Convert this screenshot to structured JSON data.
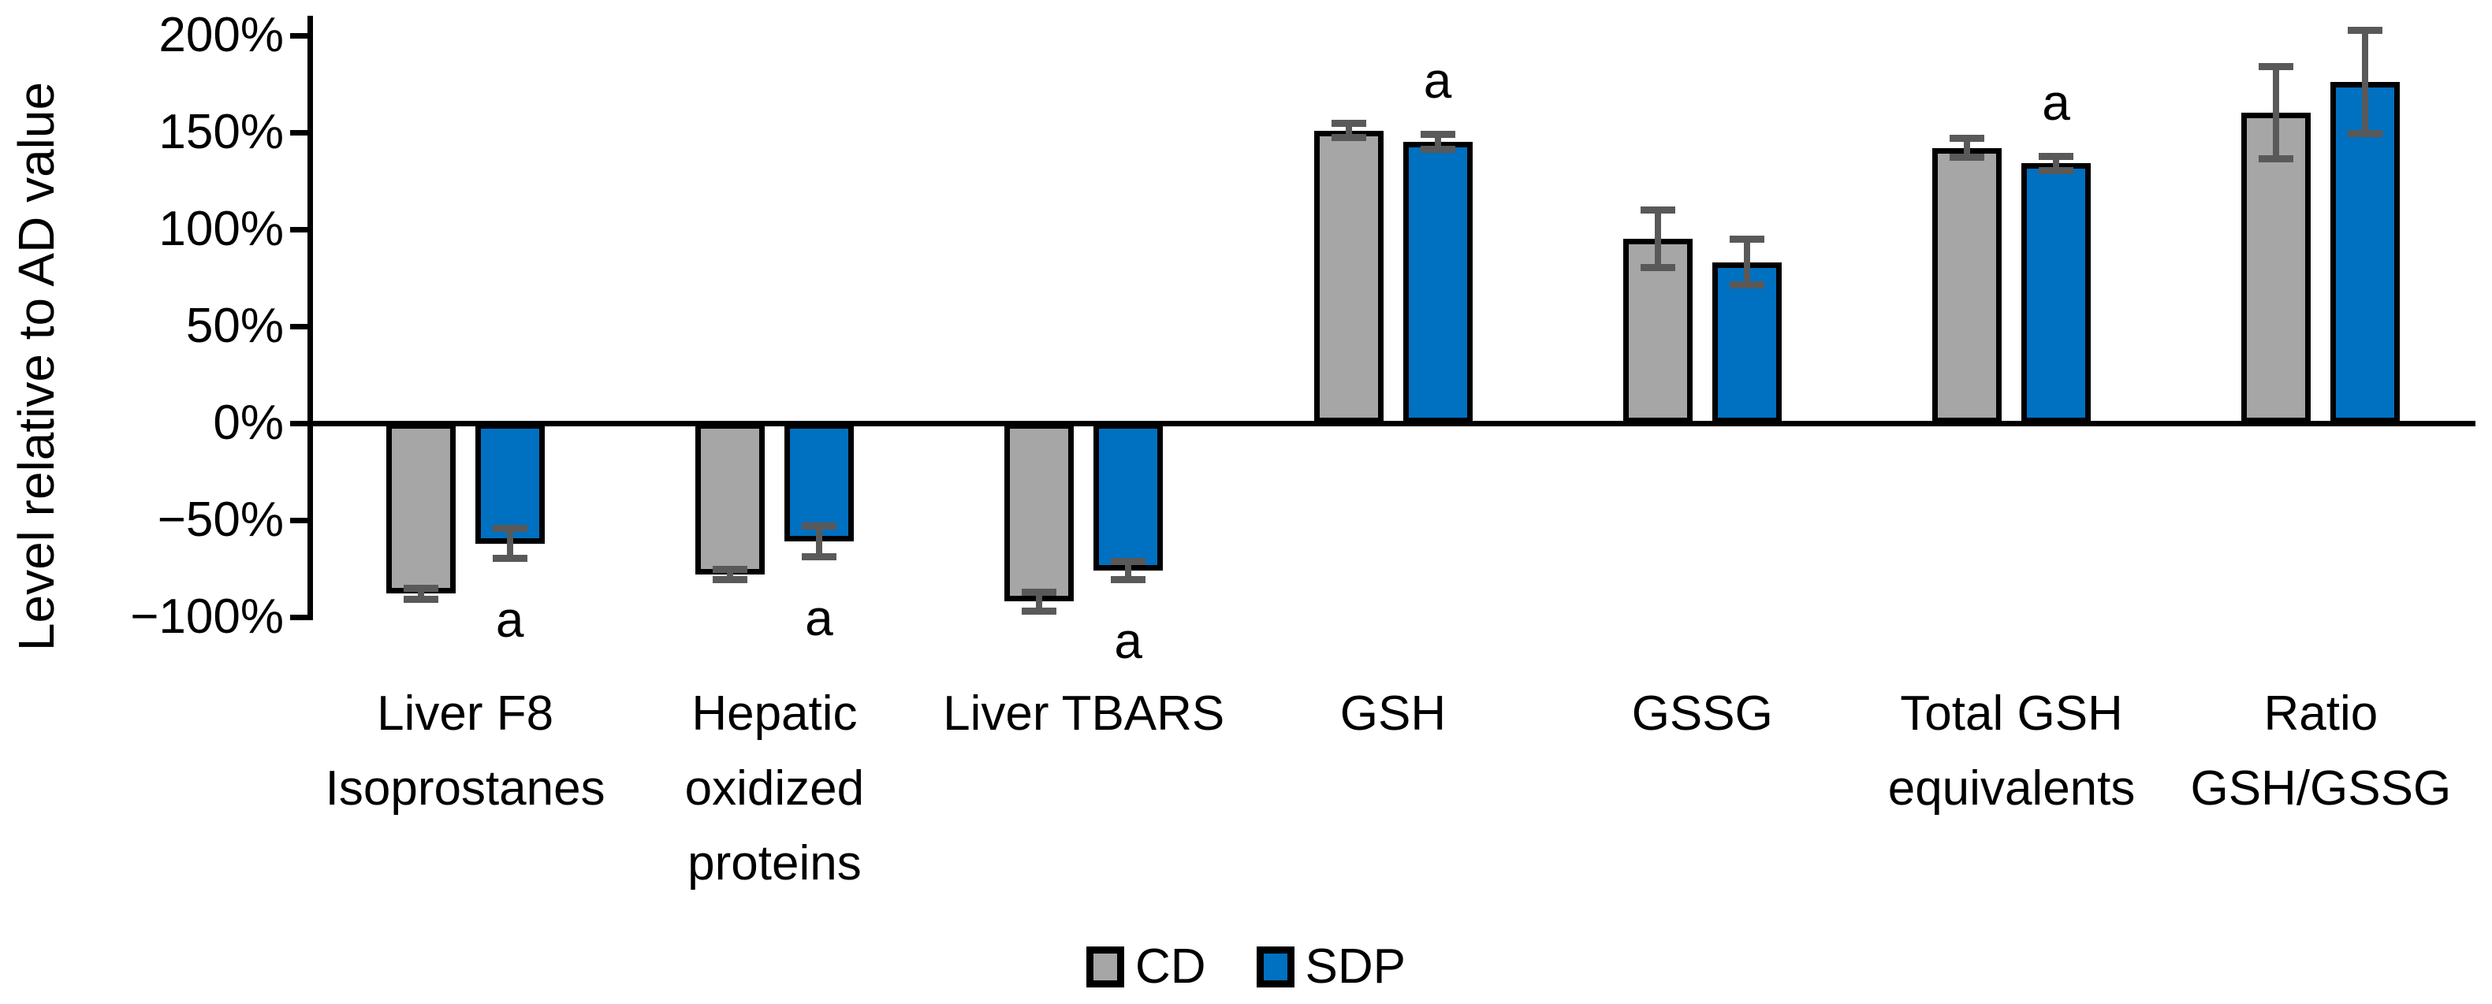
{
  "chart_data": {
    "type": "bar",
    "title": "",
    "ylabel": "Level relative to AD value",
    "xlabel": "",
    "y_axis": {
      "tick_labels": [
        "200%",
        "150%",
        "100%",
        "50%",
        "0%",
        "−50%",
        "−100%"
      ],
      "tick_values": [
        200,
        150,
        100,
        50,
        0,
        -50,
        -100
      ],
      "ylim": [
        -110,
        210
      ],
      "grid": false
    },
    "categories": [
      {
        "lines": [
          "Liver F8",
          "Isoprostanes"
        ]
      },
      {
        "lines": [
          "Hepatic",
          "oxidized",
          "proteins"
        ]
      },
      {
        "lines": [
          "Liver TBARS"
        ]
      },
      {
        "lines": [
          "GSH"
        ]
      },
      {
        "lines": [
          "GSSG"
        ]
      },
      {
        "lines": [
          "Total GSH",
          "equivalents"
        ]
      },
      {
        "lines": [
          "Ratio",
          "GSH/GSSG"
        ]
      }
    ],
    "series": [
      {
        "name": "CD",
        "color": "#A6A6A6",
        "values": [
          -88,
          -78,
          -92,
          151,
          95,
          142,
          160
        ],
        "errors": [
          3,
          3,
          5,
          4,
          15,
          5,
          24
        ],
        "annotations": [
          null,
          null,
          null,
          null,
          null,
          null,
          null
        ]
      },
      {
        "name": "SDP",
        "color": "#0070C0",
        "values": [
          -62,
          -61,
          -76,
          145,
          83,
          134,
          176
        ],
        "errors": [
          8,
          8,
          5,
          4,
          12,
          4,
          27
        ],
        "annotations": [
          "a",
          "a",
          "a",
          "a",
          null,
          "a",
          null
        ]
      }
    ],
    "error_bar_color": "#595959",
    "bar_border_color": "#000000",
    "legend": {
      "position": "bottom",
      "items": [
        {
          "label": "CD",
          "color": "#A6A6A6"
        },
        {
          "label": "SDP",
          "color": "#0070C0"
        }
      ]
    }
  }
}
